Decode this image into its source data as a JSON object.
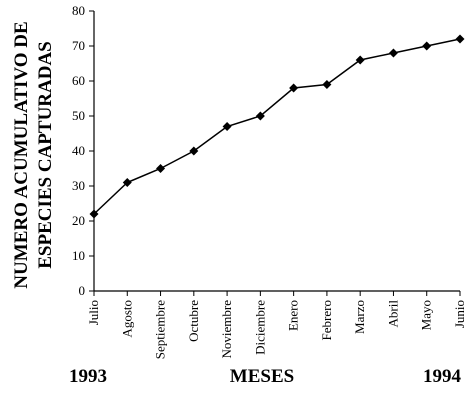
{
  "chart_data": {
    "type": "line",
    "ylabel": [
      "NUMERO ACUMULATIVO DE",
      "ESPECIES CAPTURADAS"
    ],
    "xlabel": "MESES",
    "x_start_label": "1993",
    "x_end_label": "1994",
    "categories": [
      "Julio",
      "Agosto",
      "Septiembre",
      "Octubre",
      "Noviembre",
      "Diciembre",
      "Enero",
      "Febrero",
      "Marzo",
      "Abril",
      "Mayo",
      "Junio"
    ],
    "values": [
      22,
      31,
      35,
      40,
      47,
      50,
      58,
      59,
      66,
      68,
      70,
      72
    ],
    "color": "#000000",
    "marker": "diamond",
    "ylim": [
      0,
      80
    ],
    "yticks": [
      0,
      10,
      20,
      30,
      40,
      50,
      60,
      70,
      80
    ],
    "grid": false
  }
}
